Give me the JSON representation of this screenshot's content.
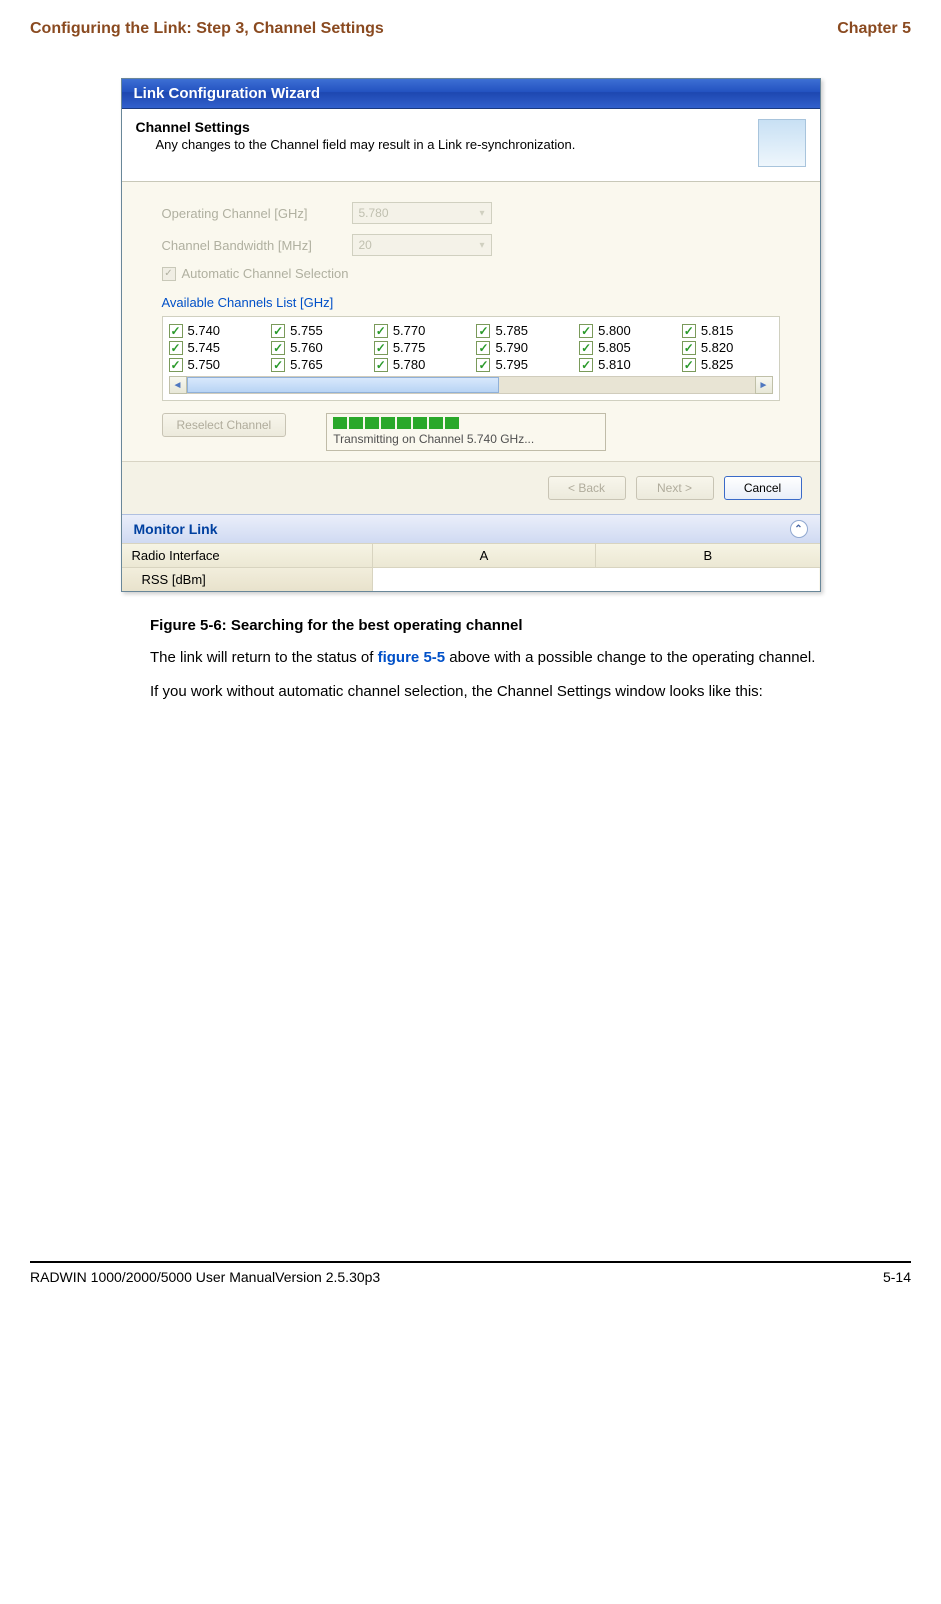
{
  "header": {
    "left": "Configuring the Link: Step 3, Channel Settings",
    "right": "Chapter 5"
  },
  "wizard": {
    "title": "Link Configuration Wizard",
    "header_title": "Channel Settings",
    "header_subtitle": "Any changes to the Channel field may result in a Link re-synchronization.",
    "operating_channel_label": "Operating Channel [GHz]",
    "operating_channel_value": "5.780",
    "bandwidth_label": "Channel Bandwidth [MHz]",
    "bandwidth_value": "20",
    "auto_label": "Automatic Channel Selection",
    "available_label": "Available Channels List [GHz]",
    "channels_col1": [
      "5.740",
      "5.745",
      "5.750"
    ],
    "channels_col2": [
      "5.755",
      "5.760",
      "5.765"
    ],
    "channels_col3": [
      "5.770",
      "5.775",
      "5.780"
    ],
    "channels_col4": [
      "5.785",
      "5.790",
      "5.795"
    ],
    "channels_col5": [
      "5.800",
      "5.805",
      "5.810"
    ],
    "channels_col6": [
      "5.815",
      "5.820",
      "5.825"
    ],
    "reselect_label": "Reselect Channel",
    "progress_text": "Transmitting on Channel 5.740 GHz...",
    "back_label": "< Back",
    "next_label": "Next >",
    "cancel_label": "Cancel",
    "monitor_title": "Monitor Link",
    "monitor_cols": [
      "Radio Interface",
      "A",
      "B"
    ],
    "monitor_row": "RSS [dBm]"
  },
  "caption": "Figure 5-6: Searching for the best operating channel",
  "para1_a": "The link will return to the status of ",
  "para1_link": "figure 5-5",
  "para1_b": " above with a possible change to the operating channel.",
  "para2": "If you work without automatic channel selection, the Channel Settings window looks like this:",
  "footer": {
    "left": "RADWIN 1000/2000/5000 User ManualVersion  2.5.30p3",
    "right": "5-14"
  }
}
